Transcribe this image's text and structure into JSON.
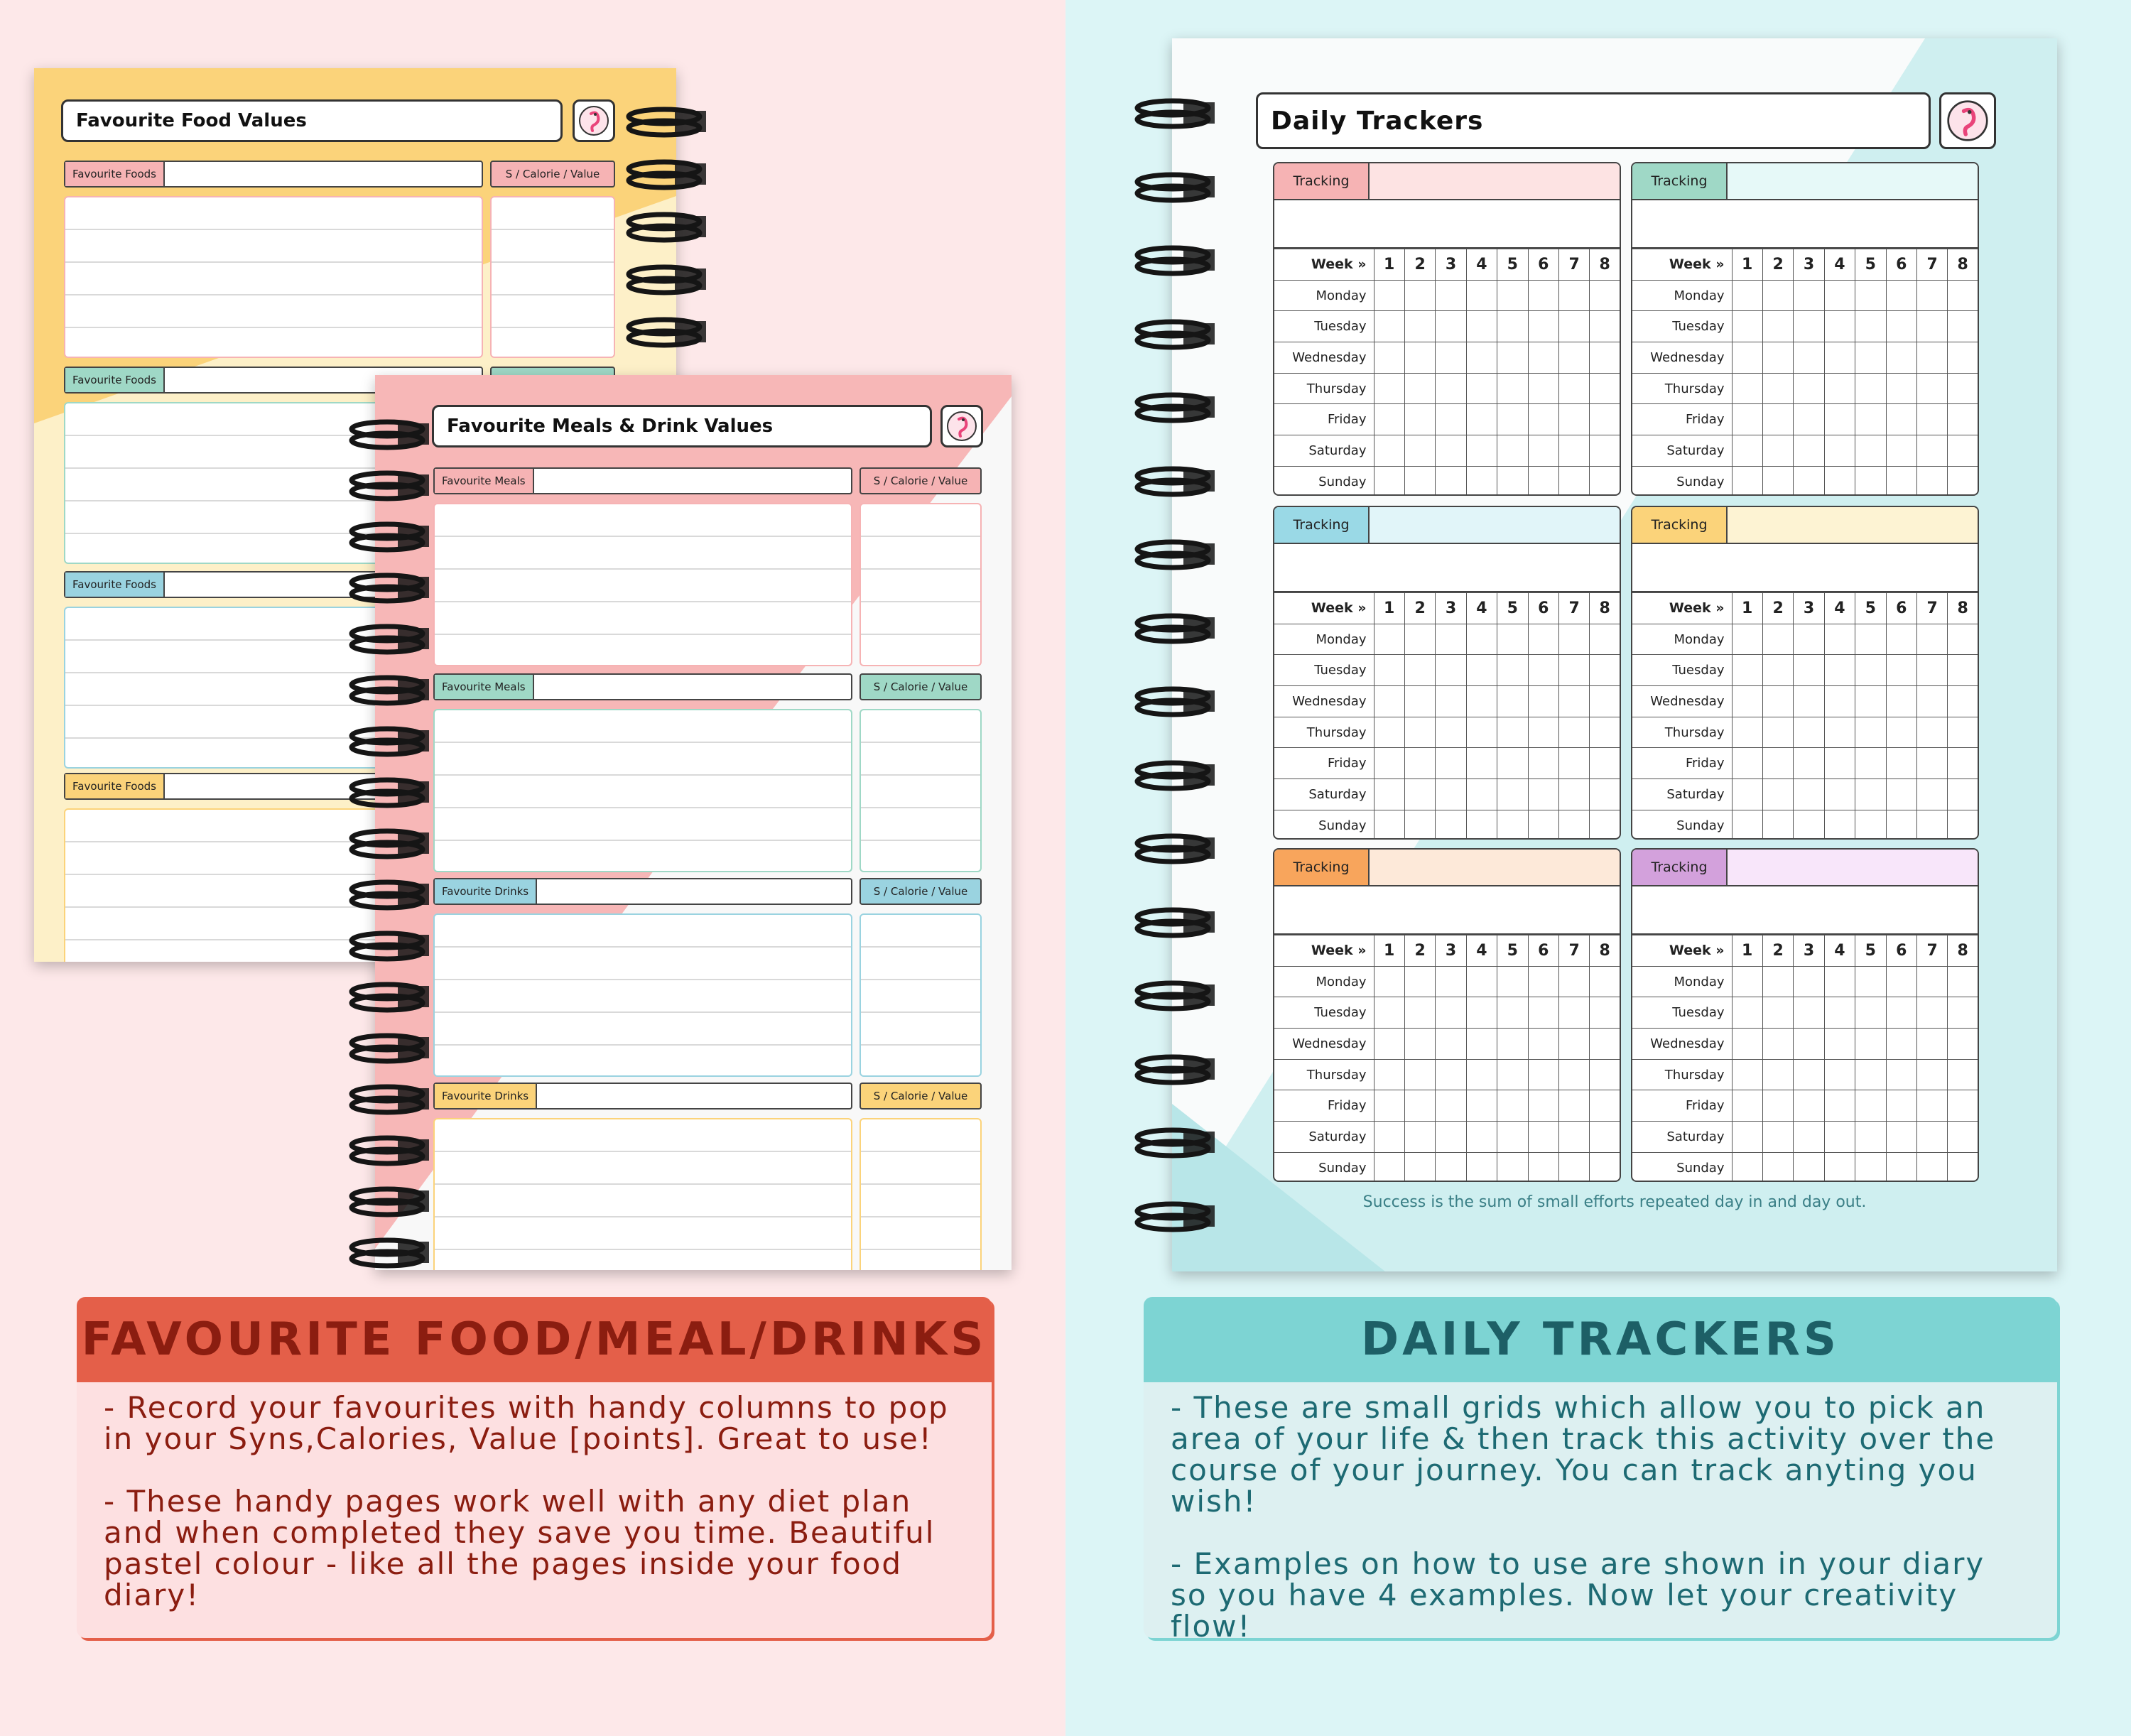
{
  "colors": {
    "left_bg": "#fde8e9",
    "right_bg": "#dcf5f6",
    "pink": "#f6b9bc",
    "yellow": "#fbd37a",
    "green": "#9fd8c6",
    "blue": "#9ad9e6",
    "orange": "#f8a55c",
    "purple": "#d3a1dc",
    "red_header": "#e45f49",
    "teal_header": "#7dd4d3"
  },
  "food_page": {
    "title": "Favourite Food Values",
    "logo_icon": "flamingo-icon",
    "sections": [
      {
        "label": "Favourite Foods",
        "value_label": "S / Calorie / Value",
        "color": "#f6b3b4"
      },
      {
        "label": "Favourite Foods",
        "value_label": "",
        "color": "#9fd8c6"
      },
      {
        "label": "Favourite Foods",
        "value_label": "",
        "color": "#9ad3e0"
      },
      {
        "label": "Favourite Foods",
        "value_label": "",
        "color": "#fbd37a"
      }
    ]
  },
  "meals_page": {
    "title": "Favourite Meals & Drink Values",
    "logo_icon": "flamingo-icon",
    "sections": [
      {
        "label": "Favourite Meals",
        "value_label": "S / Calorie / Value",
        "color": "#f6b3b4"
      },
      {
        "label": "Favourite Meals",
        "value_label": "S / Calorie / Value",
        "color": "#9fd8c6"
      },
      {
        "label": "Favourite Drinks",
        "value_label": "S / Calorie / Value",
        "color": "#9ad3e0"
      },
      {
        "label": "Favourite Drinks",
        "value_label": "S / Calorie / Value",
        "color": "#fbd37a"
      }
    ]
  },
  "tracker_page": {
    "title": "Daily Trackers",
    "logo_icon": "flamingo-icon",
    "tracking_label": "Tracking",
    "week_label": "Week »",
    "weeks": [
      "1",
      "2",
      "3",
      "4",
      "5",
      "6",
      "7",
      "8"
    ],
    "days": [
      "Monday",
      "Tuesday",
      "Wednesday",
      "Thursday",
      "Friday",
      "Saturday",
      "Sunday"
    ],
    "tracker_colors": [
      {
        "tag": "#f6b3b4",
        "fill": "#fde3e3"
      },
      {
        "tag": "#9fd8c6",
        "fill": "#e6f9f8"
      },
      {
        "tag": "#9ad9e6",
        "fill": "#e1f5f9"
      },
      {
        "tag": "#fbd37a",
        "fill": "#fdf3d3"
      },
      {
        "tag": "#f8a55c",
        "fill": "#fde9d9"
      },
      {
        "tag": "#d3a1dc",
        "fill": "#f8e6fa"
      }
    ],
    "quote": "Success is the sum of small efforts repeated day in and day out."
  },
  "left_info": {
    "title": "FAVOURITE FOOD/MEAL/DRINKS",
    "para1": "- Record your favourites with handy columns to pop in your Syns,Calories, Value [points]. Great to use!",
    "para2": "- These handy pages work well with any diet plan and when completed they save you time. Beautiful pastel colour - like all the pages inside your food diary!"
  },
  "right_info": {
    "title": "DAILY TRACKERS",
    "para1": "- These are small grids which allow you to pick an area of your life & then track this activity over the course of your journey. You can track anyting you wish!",
    "para2": "- Examples on how to use are shown in your diary so you have 4 examples. Now let your creativity flow!"
  }
}
